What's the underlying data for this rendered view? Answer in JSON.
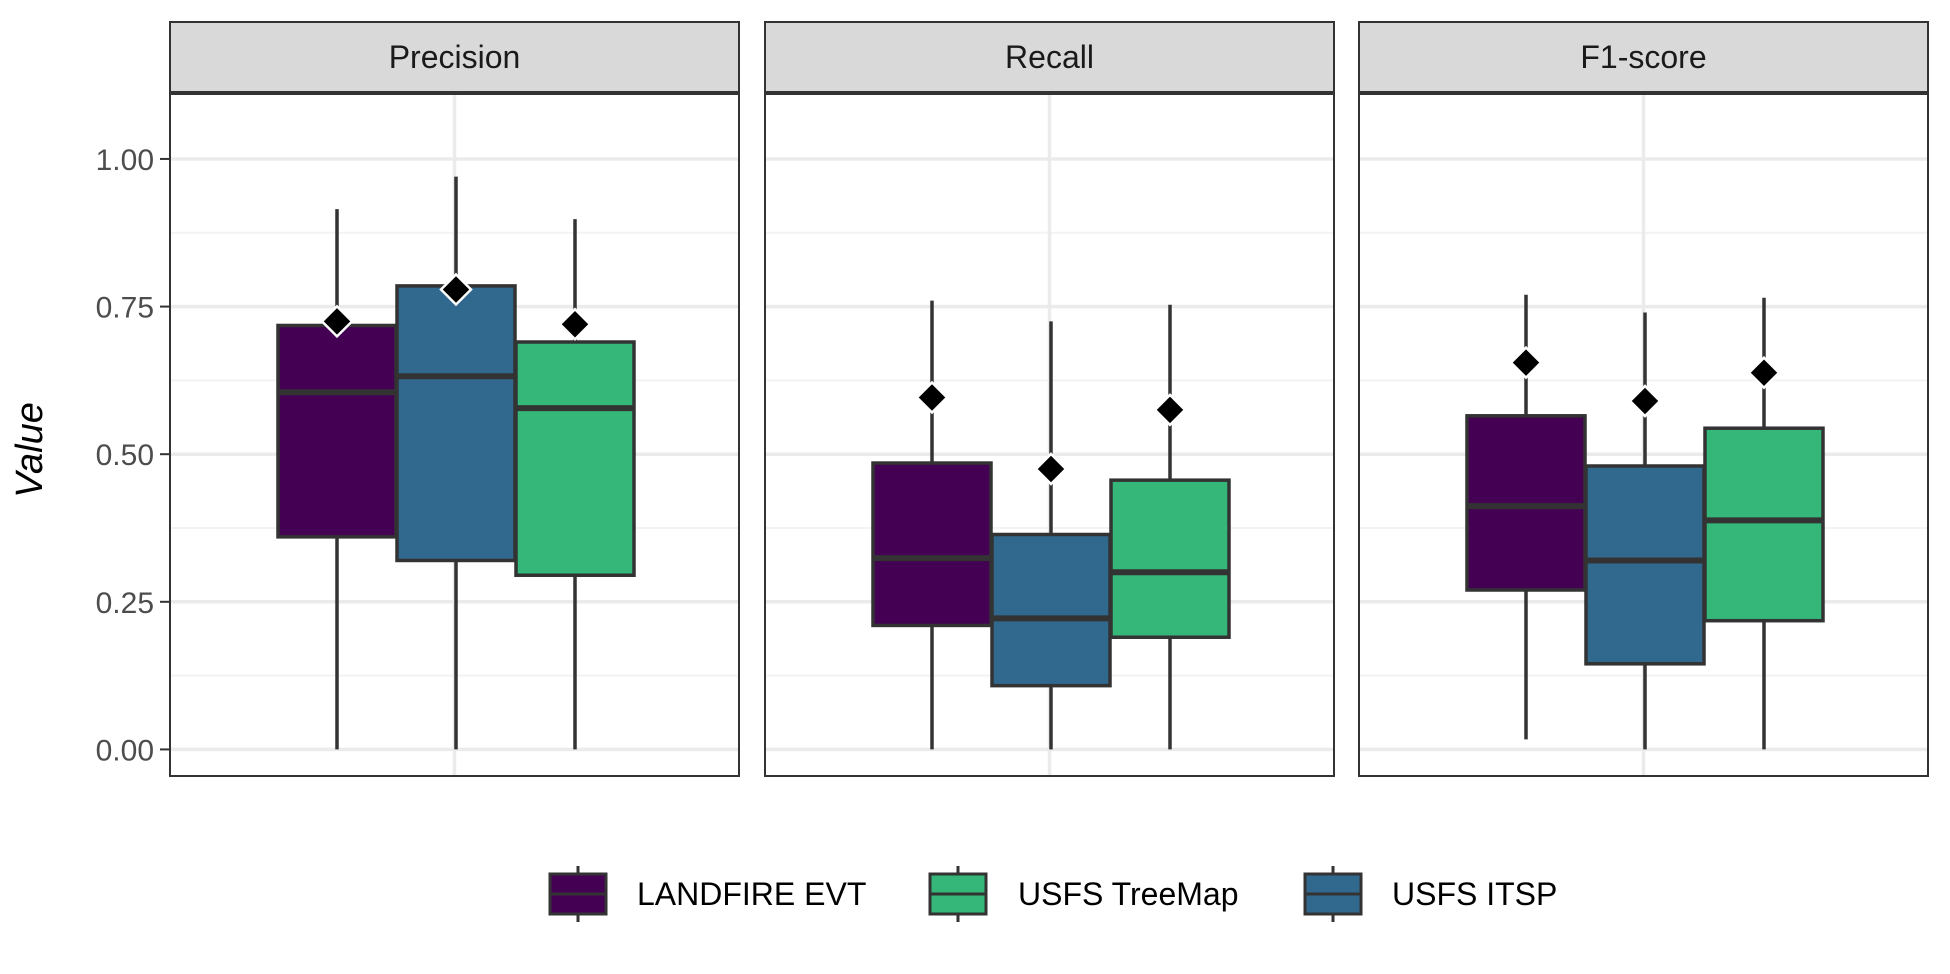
{
  "chart_data": {
    "type": "box",
    "ylabel": "Value",
    "yticks": [
      "0.00",
      "0.25",
      "0.50",
      "0.75",
      "1.00"
    ],
    "ylim": [
      -0.045,
      1.11
    ],
    "legend_position": "bottom",
    "legend": [
      {
        "label": "LANDFIRE EVT",
        "color": "#440154"
      },
      {
        "label": "USFS TreeMap",
        "color": "#35B779"
      },
      {
        "label": "USFS ITSP",
        "color": "#31688E"
      }
    ],
    "panels": [
      {
        "title": "Precision",
        "boxes": [
          {
            "series": "LANDFIRE EVT",
            "color": "#440154",
            "lower_whisker": 0.0,
            "q1": 0.36,
            "median": 0.605,
            "q3": 0.718,
            "upper_whisker": 0.915,
            "mean": 0.725
          },
          {
            "series": "USFS ITSP",
            "color": "#31688E",
            "lower_whisker": 0.0,
            "q1": 0.32,
            "median": 0.632,
            "q3": 0.785,
            "upper_whisker": 0.97,
            "mean": 0.779
          },
          {
            "series": "USFS TreeMap",
            "color": "#35B779",
            "lower_whisker": 0.0,
            "q1": 0.295,
            "median": 0.578,
            "q3": 0.69,
            "upper_whisker": 0.898,
            "mean": 0.72
          }
        ]
      },
      {
        "title": "Recall",
        "boxes": [
          {
            "series": "LANDFIRE EVT",
            "color": "#440154",
            "lower_whisker": 0.0,
            "q1": 0.21,
            "median": 0.324,
            "q3": 0.485,
            "upper_whisker": 0.76,
            "mean": 0.596
          },
          {
            "series": "USFS ITSP",
            "color": "#31688E",
            "lower_whisker": 0.0,
            "q1": 0.108,
            "median": 0.222,
            "q3": 0.364,
            "upper_whisker": 0.725,
            "mean": 0.475
          },
          {
            "series": "USFS TreeMap",
            "color": "#35B779",
            "lower_whisker": 0.0,
            "q1": 0.19,
            "median": 0.3,
            "q3": 0.456,
            "upper_whisker": 0.753,
            "mean": 0.575
          }
        ]
      },
      {
        "title": "F1-score",
        "boxes": [
          {
            "series": "LANDFIRE EVT",
            "color": "#440154",
            "lower_whisker": 0.017,
            "q1": 0.27,
            "median": 0.412,
            "q3": 0.565,
            "upper_whisker": 0.77,
            "mean": 0.655
          },
          {
            "series": "USFS ITSP",
            "color": "#31688E",
            "lower_whisker": 0.0,
            "q1": 0.145,
            "median": 0.32,
            "q3": 0.48,
            "upper_whisker": 0.74,
            "mean": 0.59
          },
          {
            "series": "USFS TreeMap",
            "color": "#35B779",
            "lower_whisker": 0.0,
            "q1": 0.218,
            "median": 0.388,
            "q3": 0.544,
            "upper_whisker": 0.765,
            "mean": 0.638
          }
        ]
      }
    ]
  }
}
